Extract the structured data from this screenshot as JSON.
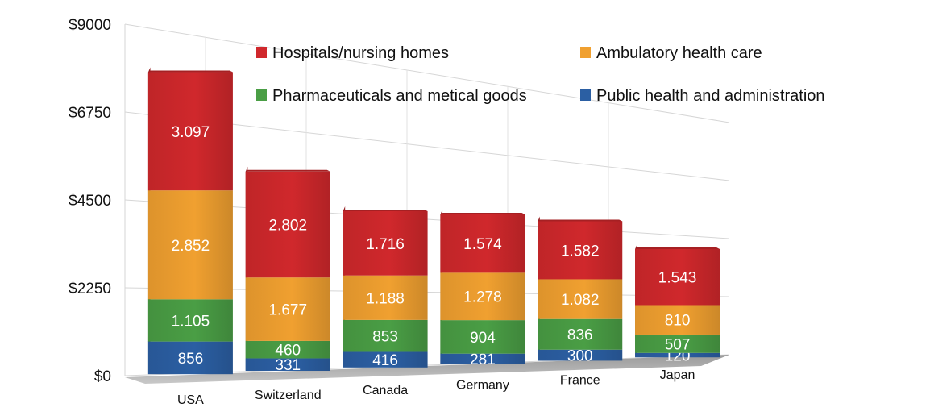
{
  "chart_data": {
    "type": "bar",
    "stacked": true,
    "three_d": true,
    "categories": [
      "USA",
      "Switzerland",
      "Canada",
      "Germany",
      "France",
      "Japan"
    ],
    "series": [
      {
        "name": "Public health and administration",
        "color": "#2b5fa3",
        "values": [
          856,
          331,
          416,
          281,
          300,
          120
        ],
        "labels": [
          "856",
          "331",
          "416",
          "281",
          "300",
          "120"
        ]
      },
      {
        "name": "Pharmaceuticals and metical goods",
        "color": "#4a9e45",
        "values": [
          1105,
          460,
          853,
          904,
          836,
          507
        ],
        "labels": [
          "1.105",
          "460",
          "853",
          "904",
          "836",
          "507"
        ]
      },
      {
        "name": "Ambulatory health care",
        "color": "#f0a030",
        "values": [
          2852,
          1677,
          1188,
          1278,
          1082,
          810
        ],
        "labels": [
          "2.852",
          "1.677",
          "1.188",
          "1.278",
          "1.082",
          "810"
        ]
      },
      {
        "name": "Hospitals/nursing homes",
        "color": "#d0282c",
        "values": [
          3097,
          2802,
          1716,
          1574,
          1582,
          1543
        ],
        "labels": [
          "3.097",
          "2.802",
          "1.716",
          "1.574",
          "1.582",
          "1.543"
        ]
      }
    ],
    "y_ticks": [
      "$0",
      "$2250",
      "$4500",
      "$6750",
      "$9000"
    ],
    "ylim": [
      0,
      9000
    ],
    "grid": true,
    "legend": {
      "placement": "top",
      "order": [
        "Hospitals/nursing homes",
        "Ambulatory health care",
        "Pharmaceuticals and metical goods",
        "Public health and administration"
      ]
    }
  }
}
